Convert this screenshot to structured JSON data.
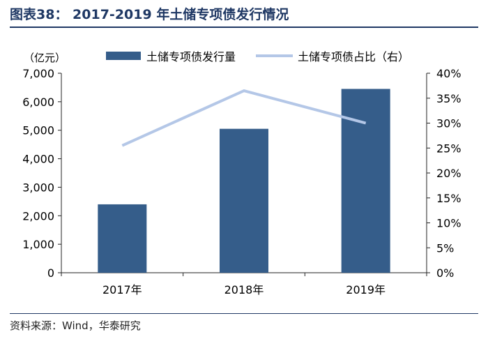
{
  "header": {
    "title": "图表38： 2017-2019 年土储专项债发行情况"
  },
  "footer": {
    "source": "资料来源：Wind，华泰研究"
  },
  "chart_data": {
    "type": "bar",
    "categories": [
      "2017年",
      "2018年",
      "2019年"
    ],
    "series": [
      {
        "name": "土储专项债发行量",
        "type": "bar",
        "axis": "left",
        "color": "#355d8a",
        "values": [
          2400,
          5050,
          6450
        ]
      },
      {
        "name": "土储专项债占比（右）",
        "type": "line",
        "axis": "right",
        "color": "#b4c7e7",
        "values": [
          25.5,
          36.5,
          30
        ]
      }
    ],
    "y_left": {
      "unit_label": "（亿元）",
      "min": 0,
      "max": 7000,
      "step": 1000
    },
    "y_right": {
      "min": 0,
      "max": 40,
      "step": 5,
      "format": "percent"
    },
    "grid": false,
    "legend_position": "top"
  }
}
